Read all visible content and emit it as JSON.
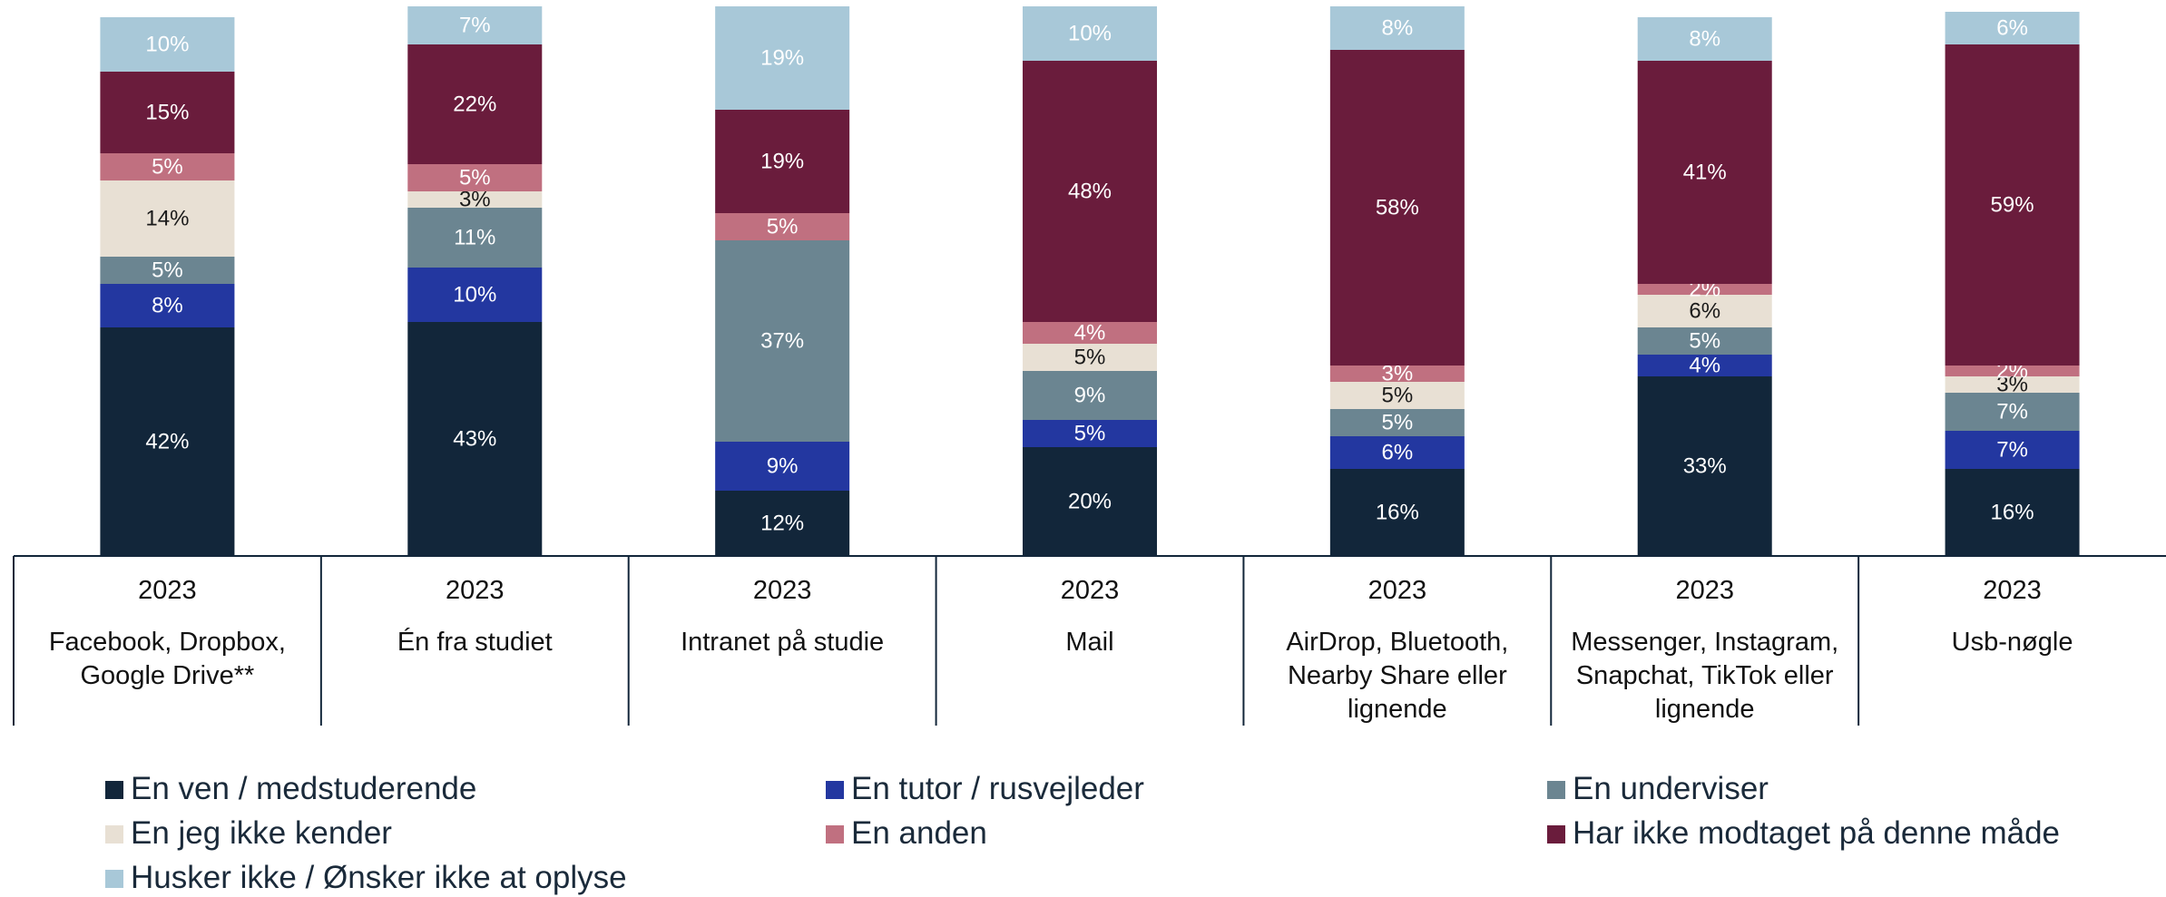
{
  "chart_data": {
    "type": "stacked_bar",
    "categories": [
      "Facebook, Dropbox, Google Drive**",
      "Én fra studiet",
      "Intranet på studie",
      "Mail",
      "AirDrop, Bluetooth, Nearby Share eller lignende",
      "Messenger, Instagram, Snapchat, TikTok eller lignende",
      "Usb-nøgle"
    ],
    "year_labels": [
      "2023",
      "2023",
      "2023",
      "2023",
      "2023",
      "2023",
      "2023"
    ],
    "ylim": [
      0,
      100
    ],
    "series": [
      {
        "name": "En ven / medstuderende",
        "color": "#12263a",
        "values": [
          42,
          43,
          12,
          20,
          16,
          33,
          16
        ],
        "value_labels": [
          "42%",
          "43%",
          "12%",
          "20%",
          "16%",
          "33%",
          "16%"
        ]
      },
      {
        "name": "En tutor / rusvejleder",
        "color": "#2337a0",
        "values": [
          8,
          10,
          9,
          5,
          6,
          4,
          7
        ],
        "value_labels": [
          "8%",
          "10%",
          "9%",
          "5%",
          "6%",
          "4%",
          "7%"
        ]
      },
      {
        "name": "En underviser",
        "color": "#6b8591",
        "values": [
          5,
          11,
          37,
          9,
          5,
          5,
          7
        ],
        "value_labels": [
          "5%",
          "11%",
          "37%",
          "9%",
          "5%",
          "5%",
          "7%"
        ]
      },
      {
        "name": "En jeg ikke kender",
        "color": "#e8e0d4",
        "values": [
          14,
          3,
          null,
          5,
          5,
          6,
          3
        ],
        "value_labels": [
          "14%",
          "3%",
          null,
          "5%",
          "5%",
          "6%",
          "3%"
        ]
      },
      {
        "name": "En anden",
        "color": "#c07080",
        "values": [
          5,
          5,
          5,
          4,
          3,
          2,
          2
        ],
        "value_labels": [
          "5%",
          "5%",
          "5%",
          "4%",
          "3%",
          "2%",
          "2%"
        ]
      },
      {
        "name": "Har ikke modtaget på denne måde",
        "color": "#6a1c3c",
        "values": [
          15,
          22,
          19,
          48,
          58,
          41,
          59
        ],
        "value_labels": [
          "15%",
          "22%",
          "19%",
          "48%",
          "58%",
          "41%",
          "59%"
        ]
      },
      {
        "name": "Husker ikke / Ønsker ikke at oplyse",
        "color": "#a8c8d8",
        "values": [
          10,
          7,
          19,
          10,
          8,
          8,
          6
        ],
        "value_labels": [
          "10%",
          "7%",
          "19%",
          "10%",
          "8%",
          "8%",
          "6%"
        ]
      }
    ]
  }
}
